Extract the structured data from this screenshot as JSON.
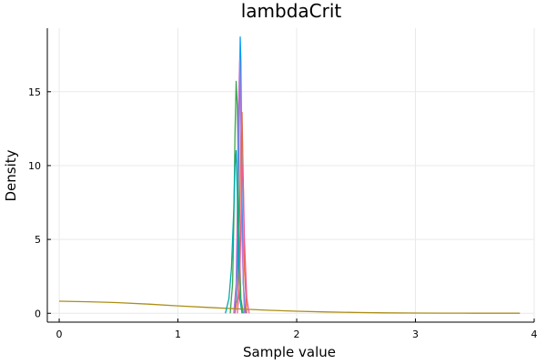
{
  "chart_data": {
    "type": "line",
    "title": "lambdaCrit",
    "xlabel": "Sample value",
    "ylabel": "Density",
    "xlim": [
      -0.1,
      4.0
    ],
    "ylim": [
      -0.6,
      19.3
    ],
    "x_ticks": [
      0,
      1,
      2,
      3,
      4
    ],
    "y_ticks": [
      0,
      5,
      10,
      15
    ],
    "grid": true,
    "legend": "none",
    "series": [
      {
        "color": "#009af9",
        "x": [
          1.48,
          1.5,
          1.51,
          1.52,
          1.525,
          1.53,
          1.54,
          1.55,
          1.57
        ],
        "y": [
          0,
          3,
          9,
          16,
          18.7,
          17,
          8,
          2,
          0
        ]
      },
      {
        "color": "#e26f46",
        "x": [
          1.48,
          1.5,
          1.51,
          1.52,
          1.53,
          1.54,
          1.55,
          1.56,
          1.58
        ],
        "y": [
          0,
          1,
          3,
          7,
          12,
          13.6,
          9,
          3,
          0
        ]
      },
      {
        "color": "#3da44d",
        "x": [
          1.44,
          1.46,
          1.47,
          1.48,
          1.49,
          1.5,
          1.51,
          1.52,
          1.53,
          1.55
        ],
        "y": [
          0,
          2,
          6,
          12,
          15.7,
          14,
          8,
          4,
          1,
          0
        ]
      },
      {
        "color": "#c271d2",
        "x": [
          1.47,
          1.49,
          1.5,
          1.51,
          1.52,
          1.53,
          1.54,
          1.56
        ],
        "y": [
          0,
          2,
          7,
          14,
          17.2,
          13,
          5,
          0
        ]
      },
      {
        "color": "#ac8e18",
        "x": [
          0,
          0.25,
          0.5,
          0.75,
          1.0,
          1.25,
          1.5,
          1.75,
          2.0,
          2.25,
          2.5,
          2.75,
          3.0,
          3.25,
          3.5,
          3.88
        ],
        "y": [
          0.82,
          0.78,
          0.72,
          0.62,
          0.5,
          0.4,
          0.3,
          0.21,
          0.14,
          0.09,
          0.055,
          0.03,
          0.015,
          0.008,
          0.004,
          0.002
        ]
      },
      {
        "color": "#00a9ad",
        "x": [
          1.4,
          1.43,
          1.45,
          1.47,
          1.48,
          1.49,
          1.5,
          1.51,
          1.52,
          1.54
        ],
        "y": [
          0,
          1,
          3,
          7,
          10,
          11,
          8,
          4,
          1,
          0
        ]
      },
      {
        "color": "#ed5d92",
        "x": [
          1.5,
          1.52,
          1.53,
          1.54,
          1.55,
          1.56,
          1.58,
          1.6
        ],
        "y": [
          0,
          2,
          6,
          10,
          9,
          5,
          1,
          0
        ]
      }
    ]
  }
}
